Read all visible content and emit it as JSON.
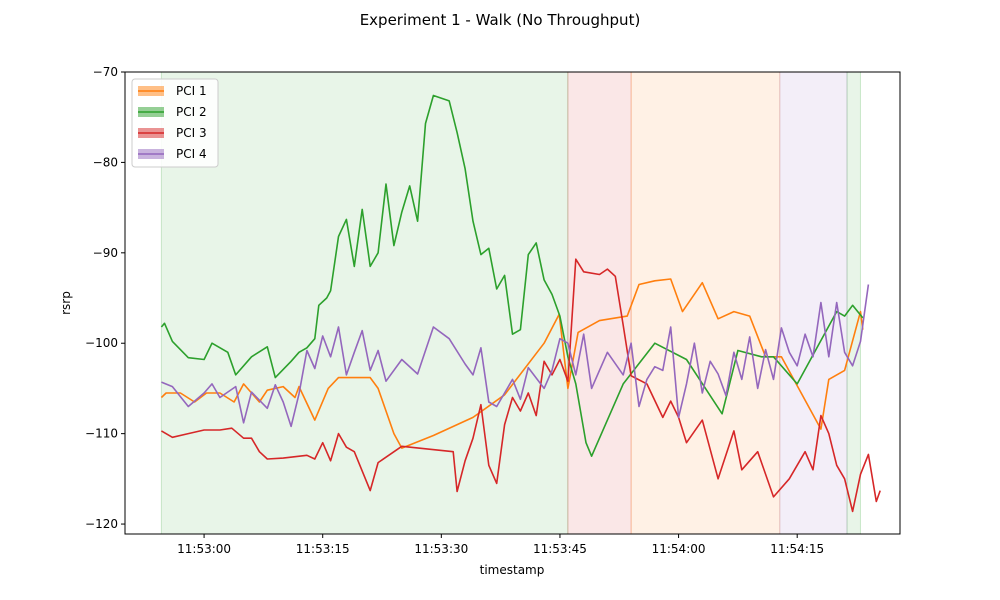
{
  "chart_data": {
    "type": "line",
    "title": "Experiment 1 - Walk (No Throughput)",
    "xlabel": "timestamp",
    "ylabel": "rsrp",
    "x_range": [
      "11:52:50",
      "11:54:28"
    ],
    "ylim": [
      -121.1,
      -70
    ],
    "x_ticks": [
      "11:53:00",
      "11:53:15",
      "11:53:30",
      "11:53:45",
      "11:54:00",
      "11:54:15"
    ],
    "y_ticks": [
      -70,
      -80,
      -90,
      -100,
      -110,
      -120
    ],
    "grid": false,
    "legend_position": "upper-left",
    "colors": {
      "PCI 1": "#ff7f0e",
      "PCI 2": "#2ca02c",
      "PCI 3": "#d62728",
      "PCI 4": "#9467bd"
    },
    "serving_cell_spans": [
      {
        "pci": "PCI 2",
        "start": "11:52:54.6",
        "end": "11:53:46.0"
      },
      {
        "pci": "PCI 3",
        "start": "11:53:46.0",
        "end": "11:53:54.0"
      },
      {
        "pci": "PCI 1",
        "start": "11:53:54.0",
        "end": "11:54:12.8"
      },
      {
        "pci": "PCI 4",
        "start": "11:54:12.8",
        "end": "11:54:21.3"
      },
      {
        "pci": "PCI 2",
        "start": "11:54:21.3",
        "end": "11:54:23.0"
      }
    ],
    "series": [
      {
        "name": "PCI 1",
        "points": [
          [
            "11:52:54.6",
            -106
          ],
          [
            "11:52:55.2",
            -105.5
          ],
          [
            "11:52:57",
            -105.5
          ],
          [
            "11:52:58.8",
            -106.5
          ],
          [
            "11:53:00.3",
            -105.5
          ],
          [
            "11:53:02",
            -105.5
          ],
          [
            "11:53:03.8",
            -106.5
          ],
          [
            "11:53:05",
            -104.5
          ],
          [
            "11:53:07",
            -106.5
          ],
          [
            "11:53:08",
            -105.2
          ],
          [
            "11:53:10",
            -104.8
          ],
          [
            "11:53:11.5",
            -106
          ],
          [
            "11:53:12",
            -104.8
          ],
          [
            "11:53:14",
            -108.5
          ],
          [
            "11:53:15.7",
            -105
          ],
          [
            "11:53:17",
            -103.8
          ],
          [
            "11:53:21",
            -103.8
          ],
          [
            "11:53:22",
            -105
          ],
          [
            "11:53:24",
            -110
          ],
          [
            "11:53:25",
            -111.6
          ],
          [
            "11:53:29",
            -110.2
          ],
          [
            "11:53:34",
            -108.2
          ],
          [
            "11:53:38",
            -105.7
          ],
          [
            "11:53:43",
            -100
          ],
          [
            "11:53:44.9",
            -96.8
          ],
          [
            "11:53:46",
            -105
          ],
          [
            "11:53:47.3",
            -98.8
          ],
          [
            "11:53:50",
            -97.5
          ],
          [
            "11:53:53.5",
            -97
          ],
          [
            "11:53:55",
            -93.5
          ],
          [
            "11:53:57",
            -93.1
          ],
          [
            "11:53:59",
            -92.9
          ],
          [
            "11:54:00.5",
            -96.5
          ],
          [
            "11:54:03",
            -93.3
          ],
          [
            "11:54:05",
            -97.3
          ],
          [
            "11:54:07",
            -96.5
          ],
          [
            "11:54:09",
            -97
          ],
          [
            "11:54:11",
            -101.5
          ],
          [
            "11:54:13",
            -101.5
          ],
          [
            "11:54:18",
            -109.5
          ],
          [
            "11:54:19",
            -104
          ],
          [
            "11:54:21",
            -103
          ],
          [
            "11:54:23",
            -96.5
          ],
          [
            "11:54:23.3",
            -98.5
          ]
        ]
      },
      {
        "name": "PCI 2",
        "points": [
          [
            "11:52:54.6",
            -98.2
          ],
          [
            "11:52:55",
            -97.8
          ],
          [
            "11:52:56",
            -99.8
          ],
          [
            "11:52:58",
            -101.6
          ],
          [
            "11:53:00",
            -101.8
          ],
          [
            "11:53:01",
            -100
          ],
          [
            "11:53:03",
            -101
          ],
          [
            "11:53:04",
            -103.5
          ],
          [
            "11:53:06",
            -101.5
          ],
          [
            "11:53:08",
            -100.4
          ],
          [
            "11:53:09",
            -103.8
          ],
          [
            "11:53:11",
            -102
          ],
          [
            "11:53:12",
            -101
          ],
          [
            "11:53:13",
            -100.5
          ],
          [
            "11:53:14",
            -99.5
          ],
          [
            "11:53:14.5",
            -95.8
          ],
          [
            "11:53:15.5",
            -95
          ],
          [
            "11:53:16",
            -94.2
          ],
          [
            "11:53:17",
            -88.2
          ],
          [
            "11:53:18",
            -86.3
          ],
          [
            "11:53:19",
            -91.5
          ],
          [
            "11:53:20",
            -85.2
          ],
          [
            "11:53:21",
            -91.5
          ],
          [
            "11:53:22",
            -90
          ],
          [
            "11:53:23",
            -82.4
          ],
          [
            "11:53:24",
            -89.2
          ],
          [
            "11:53:25",
            -85.5
          ],
          [
            "11:53:26",
            -82.6
          ],
          [
            "11:53:27",
            -86.5
          ],
          [
            "11:53:28",
            -75.7
          ],
          [
            "11:53:29",
            -72.6
          ],
          [
            "11:53:31",
            -73.2
          ],
          [
            "11:53:32",
            -76.7
          ],
          [
            "11:53:33",
            -80.7
          ],
          [
            "11:53:34",
            -86.5
          ],
          [
            "11:53:35",
            -90.2
          ],
          [
            "11:53:36",
            -89.5
          ],
          [
            "11:53:37",
            -94
          ],
          [
            "11:53:38",
            -92.5
          ],
          [
            "11:53:39",
            -99
          ],
          [
            "11:53:40",
            -98.5
          ],
          [
            "11:53:41",
            -90.2
          ],
          [
            "11:53:42",
            -88.9
          ],
          [
            "11:53:43",
            -93
          ],
          [
            "11:53:44",
            -94.6
          ],
          [
            "11:53:45",
            -97
          ],
          [
            "11:53:46",
            -101.5
          ],
          [
            "11:53:47",
            -104.5
          ],
          [
            "11:53:48.3",
            -111
          ],
          [
            "11:53:49",
            -112.5
          ],
          [
            "11:53:53",
            -104.5
          ],
          [
            "11:53:57",
            -100
          ],
          [
            "11:54:01",
            -101.8
          ],
          [
            "11:54:05.5",
            -107.8
          ],
          [
            "11:54:07.5",
            -100.8
          ],
          [
            "11:54:10.5",
            -101.5
          ],
          [
            "11:54:12",
            -101.5
          ],
          [
            "11:54:15",
            -104.5
          ],
          [
            "11:54:20",
            -96.5
          ],
          [
            "11:54:21",
            -97
          ],
          [
            "11:54:22",
            -95.8
          ],
          [
            "11:54:23.3",
            -97.2
          ]
        ]
      },
      {
        "name": "PCI 3",
        "points": [
          [
            "11:52:54.6",
            -109.7
          ],
          [
            "11:52:56",
            -110.4
          ],
          [
            "11:52:58",
            -110
          ],
          [
            "11:53:00",
            -109.6
          ],
          [
            "11:53:02",
            -109.6
          ],
          [
            "11:53:03.5",
            -109.4
          ],
          [
            "11:53:05",
            -110.5
          ],
          [
            "11:53:06",
            -110.5
          ],
          [
            "11:53:07",
            -112
          ],
          [
            "11:53:08",
            -112.8
          ],
          [
            "11:53:10",
            -112.7
          ],
          [
            "11:53:13",
            -112.4
          ],
          [
            "11:53:14",
            -112.8
          ],
          [
            "11:53:15",
            -111
          ],
          [
            "11:53:16",
            -113
          ],
          [
            "11:53:17",
            -110
          ],
          [
            "11:53:18",
            -111.5
          ],
          [
            "11:53:19",
            -112
          ],
          [
            "11:53:21",
            -116.3
          ],
          [
            "11:53:22",
            -113.2
          ],
          [
            "11:53:25",
            -111.4
          ],
          [
            "11:53:31.5",
            -112
          ],
          [
            "11:53:32",
            -116.4
          ],
          [
            "11:53:33",
            -113
          ],
          [
            "11:53:34",
            -110.5
          ],
          [
            "11:53:35",
            -106.8
          ],
          [
            "11:53:36",
            -113.5
          ],
          [
            "11:53:37",
            -115.5
          ],
          [
            "11:53:38",
            -109
          ],
          [
            "11:53:39",
            -106
          ],
          [
            "11:53:40",
            -107.5
          ],
          [
            "11:53:41",
            -105.5
          ],
          [
            "11:53:42",
            -108
          ],
          [
            "11:53:43",
            -102
          ],
          [
            "11:53:44",
            -103.5
          ],
          [
            "11:53:45",
            -101.8
          ],
          [
            "11:53:46",
            -104.2
          ],
          [
            "11:53:47",
            -90.7
          ],
          [
            "11:53:48",
            -92.1
          ],
          [
            "11:53:50",
            -92.4
          ],
          [
            "11:53:51",
            -91.8
          ],
          [
            "11:53:52",
            -92.6
          ],
          [
            "11:53:53",
            -98
          ],
          [
            "11:53:54",
            -103.6
          ],
          [
            "11:53:56",
            -104.5
          ],
          [
            "11:53:58",
            -108.2
          ],
          [
            "11:53:59",
            -106.4
          ],
          [
            "11:54:00",
            -108.2
          ],
          [
            "11:54:01",
            -111
          ],
          [
            "11:54:03",
            -108.5
          ],
          [
            "11:54:05",
            -115
          ],
          [
            "11:54:07",
            -109.7
          ],
          [
            "11:54:08",
            -114
          ],
          [
            "11:54:10",
            -112
          ],
          [
            "11:54:12",
            -117
          ],
          [
            "11:54:14",
            -115
          ],
          [
            "11:54:16",
            -112
          ],
          [
            "11:54:17",
            -114
          ],
          [
            "11:54:18",
            -108
          ],
          [
            "11:54:19",
            -110
          ],
          [
            "11:54:20",
            -113.5
          ],
          [
            "11:54:21",
            -115
          ],
          [
            "11:54:22",
            -118.6
          ],
          [
            "11:54:23",
            -114.5
          ],
          [
            "11:54:24",
            -112.3
          ],
          [
            "11:54:25",
            -117.5
          ],
          [
            "11:54:25.5",
            -116.3
          ]
        ]
      },
      {
        "name": "PCI 4",
        "points": [
          [
            "11:52:54.6",
            -104.3
          ],
          [
            "11:52:56",
            -104.8
          ],
          [
            "11:52:58",
            -107
          ],
          [
            "11:53:00",
            -105.5
          ],
          [
            "11:53:01",
            -104.5
          ],
          [
            "11:53:02",
            -106
          ],
          [
            "11:53:04",
            -104.8
          ],
          [
            "11:53:05",
            -108.8
          ],
          [
            "11:53:06",
            -105.4
          ],
          [
            "11:53:08",
            -107.2
          ],
          [
            "11:53:09",
            -104.6
          ],
          [
            "11:53:10",
            -106.5
          ],
          [
            "11:53:11",
            -109.2
          ],
          [
            "11:53:12",
            -105.6
          ],
          [
            "11:53:13",
            -100.8
          ],
          [
            "11:53:14",
            -102.8
          ],
          [
            "11:53:15",
            -99.2
          ],
          [
            "11:53:16",
            -101.5
          ],
          [
            "11:53:17",
            -98.2
          ],
          [
            "11:53:18",
            -103.5
          ],
          [
            "11:53:19",
            -101
          ],
          [
            "11:53:20",
            -98.6
          ],
          [
            "11:53:21",
            -103
          ],
          [
            "11:53:22",
            -100.8
          ],
          [
            "11:53:23",
            -104.2
          ],
          [
            "11:53:25",
            -101.8
          ],
          [
            "11:53:27",
            -103.4
          ],
          [
            "11:53:29",
            -98.2
          ],
          [
            "11:53:31",
            -99.5
          ],
          [
            "11:53:33",
            -102.3
          ],
          [
            "11:53:34",
            -103.5
          ],
          [
            "11:53:35",
            -100.5
          ],
          [
            "11:53:36",
            -106.5
          ],
          [
            "11:53:37",
            -107
          ],
          [
            "11:53:39",
            -104
          ],
          [
            "11:53:40",
            -106.2
          ],
          [
            "11:53:41",
            -102.7
          ],
          [
            "11:53:43",
            -105
          ],
          [
            "11:53:44",
            -103
          ],
          [
            "11:53:45",
            -99.5
          ],
          [
            "11:53:46",
            -100
          ],
          [
            "11:53:47",
            -103.5
          ],
          [
            "11:53:48",
            -99
          ],
          [
            "11:53:49",
            -105
          ],
          [
            "11:53:51",
            -101
          ],
          [
            "11:53:53",
            -103.5
          ],
          [
            "11:53:54",
            -100
          ],
          [
            "11:53:55",
            -107
          ],
          [
            "11:53:56",
            -104
          ],
          [
            "11:53:57",
            -102.6
          ],
          [
            "11:53:58",
            -103
          ],
          [
            "11:53:59",
            -98.2
          ],
          [
            "11:54:00",
            -108.2
          ],
          [
            "11:54:01",
            -104.5
          ],
          [
            "11:54:02",
            -100
          ],
          [
            "11:54:03",
            -105.5
          ],
          [
            "11:54:04",
            -102
          ],
          [
            "11:54:05",
            -103.4
          ],
          [
            "11:54:06",
            -105.8
          ],
          [
            "11:54:07",
            -101
          ],
          [
            "11:54:08",
            -104
          ],
          [
            "11:54:09",
            -99.3
          ],
          [
            "11:54:10",
            -105
          ],
          [
            "11:54:11",
            -100.7
          ],
          [
            "11:54:12",
            -104
          ],
          [
            "11:54:13",
            -98.3
          ],
          [
            "11:54:14",
            -101
          ],
          [
            "11:54:15",
            -102.5
          ],
          [
            "11:54:16",
            -99
          ],
          [
            "11:54:17",
            -101.5
          ],
          [
            "11:54:18",
            -95.5
          ],
          [
            "11:54:19",
            -101.5
          ],
          [
            "11:54:20",
            -95.5
          ],
          [
            "11:54:21",
            -101
          ],
          [
            "11:54:22",
            -102.5
          ],
          [
            "11:54:23",
            -99.8
          ],
          [
            "11:54:24",
            -93.5
          ]
        ]
      }
    ]
  }
}
